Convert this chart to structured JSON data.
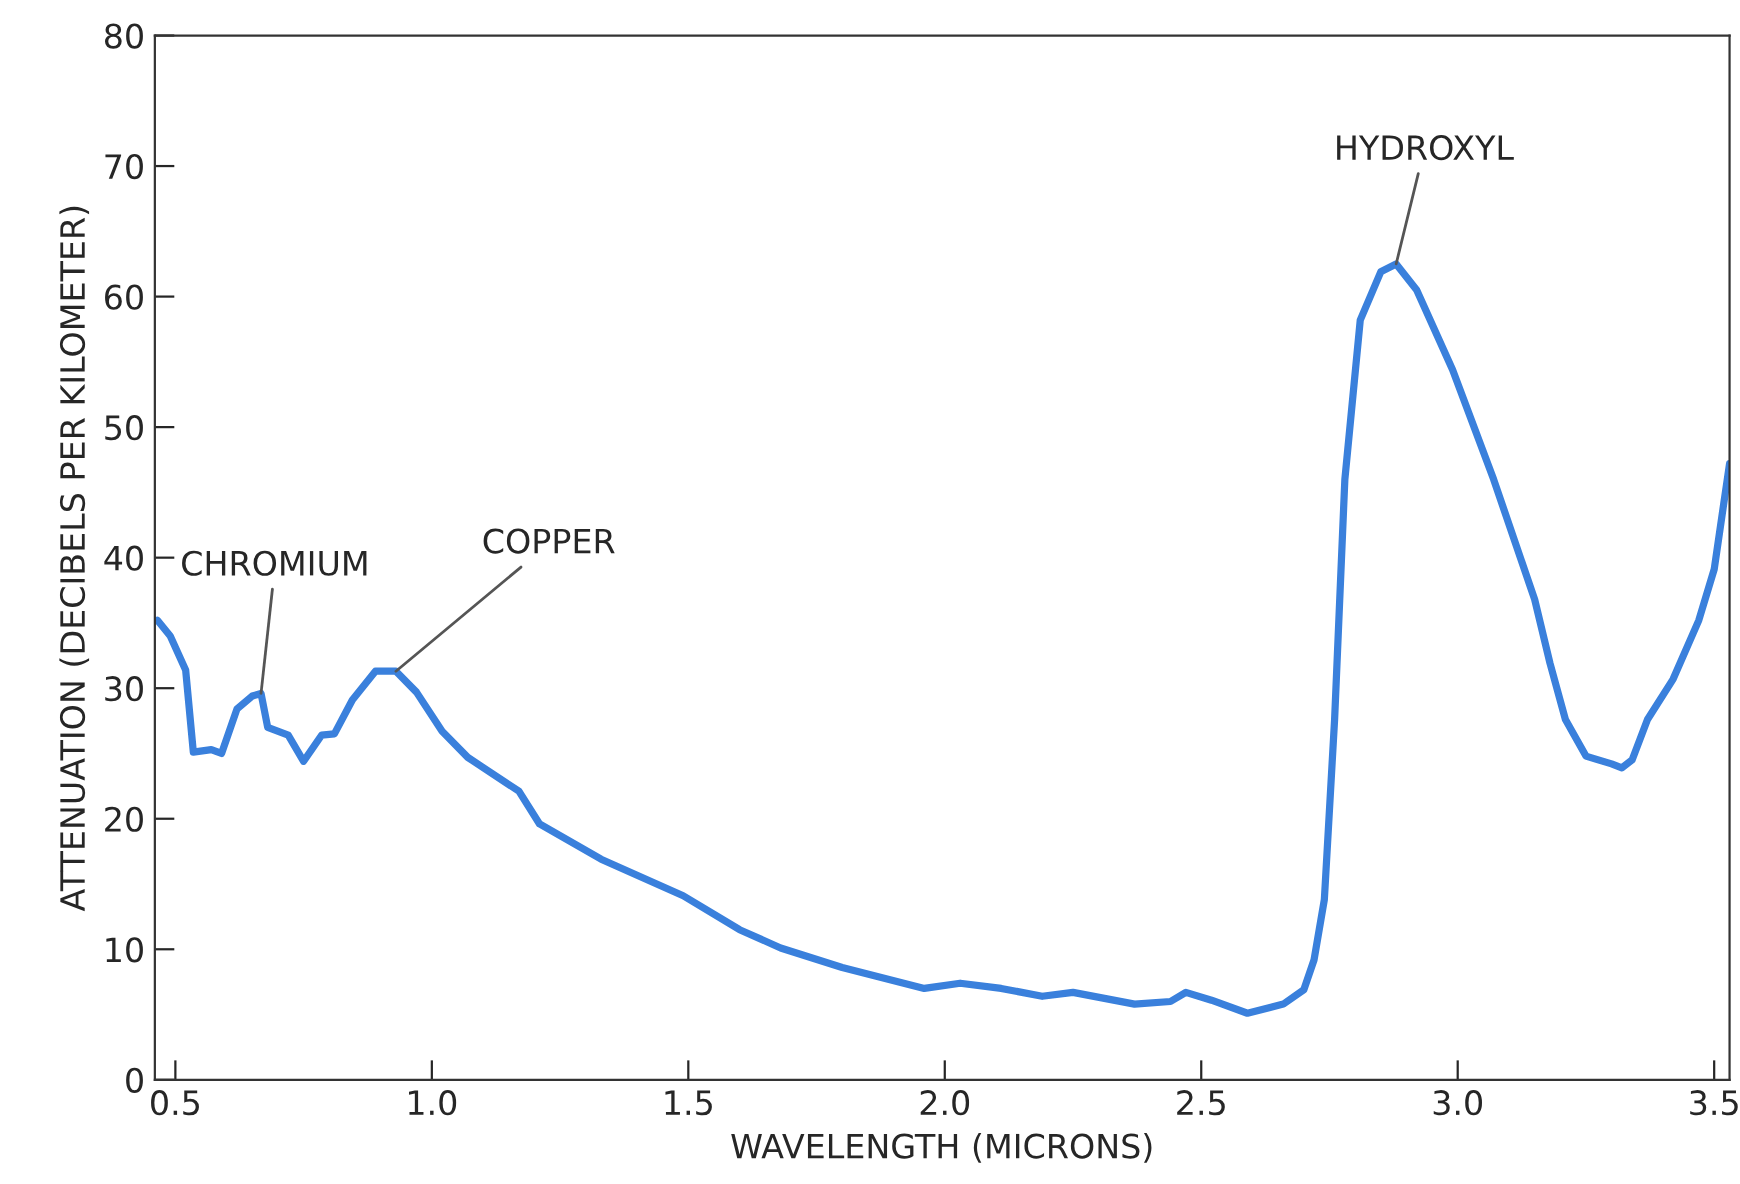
{
  "chart_data": {
    "type": "line",
    "xlabel": "WAVELENGTH (MICRONS)",
    "ylabel": "ATTENUATION (DECIBELS PER KILOMETER)",
    "xlim": [
      0.46,
      3.53
    ],
    "ylim": [
      0,
      80
    ],
    "xticks": [
      {
        "value": 0.5,
        "label": "0.5"
      },
      {
        "value": 1.0,
        "label": "1.0"
      },
      {
        "value": 1.5,
        "label": "1.5"
      },
      {
        "value": 2.0,
        "label": "2.0"
      },
      {
        "value": 2.5,
        "label": "2.5"
      },
      {
        "value": 3.0,
        "label": "3.0"
      },
      {
        "value": 3.5,
        "label": "3.5"
      }
    ],
    "yticks": [
      0,
      10,
      20,
      30,
      40,
      50,
      60,
      70,
      80
    ],
    "grid": false,
    "marker": "none",
    "line_style": "solid",
    "series": [
      {
        "color": "#3a80dc",
        "x": [
          0.465,
          0.49,
          0.52,
          0.535,
          0.57,
          0.59,
          0.62,
          0.65,
          0.667,
          0.68,
          0.72,
          0.75,
          0.785,
          0.81,
          0.845,
          0.89,
          0.93,
          0.97,
          1.02,
          1.07,
          1.17,
          1.21,
          1.33,
          1.49,
          1.6,
          1.68,
          1.8,
          1.96,
          2.03,
          2.11,
          2.19,
          2.25,
          2.37,
          2.44,
          2.47,
          2.52,
          2.59,
          2.66,
          2.7,
          2.72,
          2.74,
          2.76,
          2.78,
          2.81,
          2.85,
          2.88,
          2.92,
          2.99,
          3.07,
          3.15,
          3.18,
          3.21,
          3.25,
          3.3,
          3.32,
          3.34,
          3.37,
          3.42,
          3.47,
          3.5,
          3.53
        ],
        "values": [
          35.2,
          34,
          31.4,
          25.1,
          25.3,
          25,
          28.4,
          29.4,
          29.6,
          27,
          26.4,
          24.4,
          26.4,
          26.5,
          29.1,
          31.3,
          31.3,
          29.7,
          26.7,
          24.7,
          22.1,
          19.6,
          16.9,
          14.1,
          11.5,
          10.1,
          8.6,
          7.0,
          7.4,
          7.0,
          6.4,
          6.7,
          5.8,
          6.0,
          6.7,
          6.1,
          5.1,
          5.8,
          6.9,
          9.2,
          13.8,
          27.6,
          46,
          58.2,
          61.9,
          62.5,
          60.5,
          54.4,
          46,
          36.8,
          31.9,
          27.6,
          24.8,
          24.2,
          23.9,
          24.5,
          27.6,
          30.7,
          35.2,
          39.1,
          47.2
        ]
      }
    ],
    "annotations": [
      {
        "text": "CHROMIUM",
        "x": 0.667,
        "y": 29.6
      },
      {
        "text": "COPPER",
        "x": 0.93,
        "y": 31.3
      },
      {
        "text": "HYDROXYL",
        "x": 2.88,
        "y": 62.5
      }
    ]
  }
}
